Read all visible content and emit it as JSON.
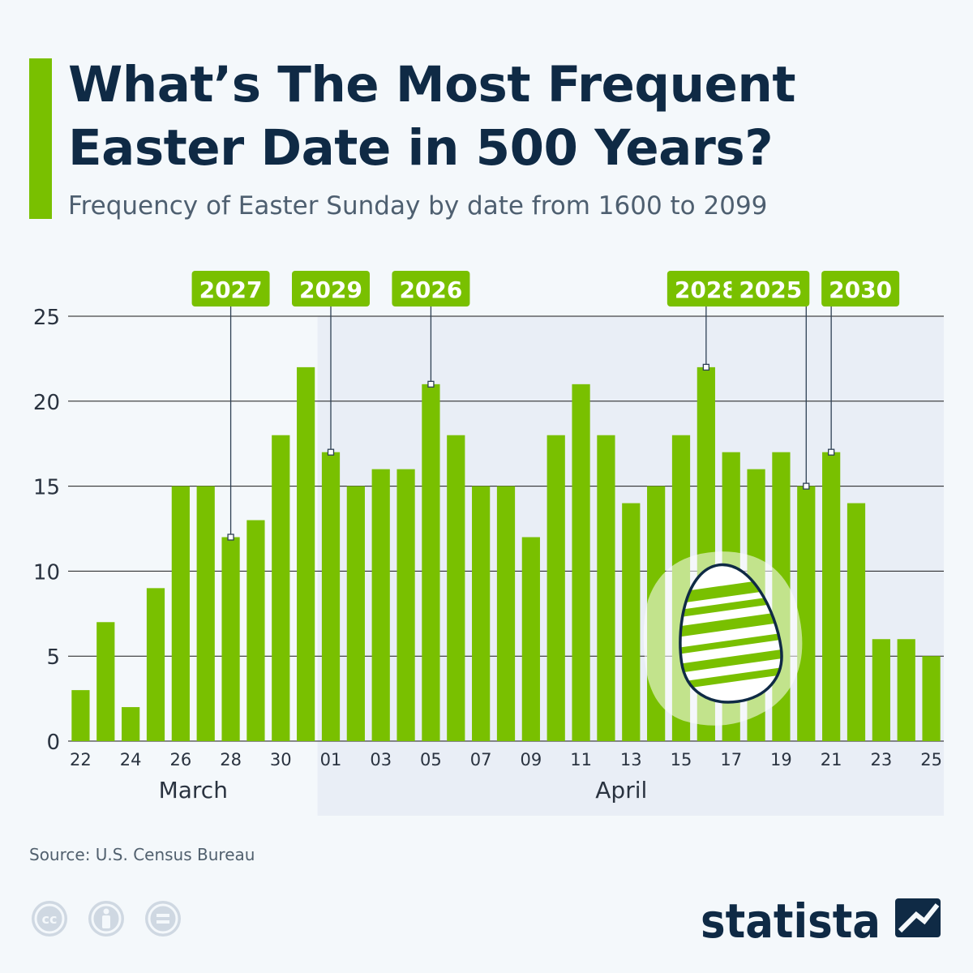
{
  "header": {
    "title_line1": "What’s The Most Frequent",
    "title_line2": "Easter Date in 500 Years?",
    "subtitle": "Frequency of Easter Sunday by date from 1600 to 2099"
  },
  "chart_data": {
    "type": "bar",
    "title": "What’s The Most Frequent Easter Date in 500 Years?",
    "subtitle": "Frequency of Easter Sunday by date from 1600 to 2099",
    "categories": [
      "22",
      "23",
      "24",
      "25",
      "26",
      "27",
      "28",
      "29",
      "30",
      "31",
      "01",
      "02",
      "03",
      "04",
      "05",
      "06",
      "07",
      "08",
      "09",
      "10",
      "11",
      "12",
      "13",
      "14",
      "15",
      "16",
      "17",
      "18",
      "19",
      "20",
      "21",
      "22",
      "23",
      "24",
      "25"
    ],
    "month_of_category": [
      "March",
      "March",
      "March",
      "March",
      "March",
      "March",
      "March",
      "March",
      "March",
      "March",
      "April",
      "April",
      "April",
      "April",
      "April",
      "April",
      "April",
      "April",
      "April",
      "April",
      "April",
      "April",
      "April",
      "April",
      "April",
      "April",
      "April",
      "April",
      "April",
      "April",
      "April",
      "April",
      "April",
      "April",
      "April"
    ],
    "values": [
      3,
      7,
      2,
      9,
      15,
      15,
      12,
      13,
      18,
      22,
      17,
      15,
      16,
      16,
      21,
      18,
      15,
      15,
      12,
      18,
      21,
      18,
      14,
      15,
      18,
      22,
      17,
      16,
      17,
      15,
      17,
      14,
      6,
      6,
      5
    ],
    "tick_labels": [
      {
        "index": 0,
        "label": "22"
      },
      {
        "index": 2,
        "label": "24"
      },
      {
        "index": 4,
        "label": "26"
      },
      {
        "index": 6,
        "label": "28"
      },
      {
        "index": 8,
        "label": "30"
      },
      {
        "index": 10,
        "label": "01"
      },
      {
        "index": 12,
        "label": "03"
      },
      {
        "index": 14,
        "label": "05"
      },
      {
        "index": 16,
        "label": "07"
      },
      {
        "index": 18,
        "label": "09"
      },
      {
        "index": 20,
        "label": "11"
      },
      {
        "index": 22,
        "label": "13"
      },
      {
        "index": 24,
        "label": "15"
      },
      {
        "index": 26,
        "label": "17"
      },
      {
        "index": 28,
        "label": "19"
      },
      {
        "index": 30,
        "label": "21"
      },
      {
        "index": 32,
        "label": "23"
      },
      {
        "index": 34,
        "label": "25"
      }
    ],
    "month_groups": [
      {
        "label": "March",
        "start": 0,
        "end": 9
      },
      {
        "label": "April",
        "start": 10,
        "end": 34
      }
    ],
    "yticks": [
      "0",
      "5",
      "10",
      "15",
      "20",
      "25"
    ],
    "ylim": [
      0,
      25
    ],
    "xlabel": "",
    "ylabel": "",
    "grid": true,
    "annotations": [
      {
        "label": "2027",
        "index": 6
      },
      {
        "label": "2029",
        "index": 10
      },
      {
        "label": "2026",
        "index": 14
      },
      {
        "label": "2028",
        "index": 25
      },
      {
        "label": "2025",
        "index": 29
      },
      {
        "label": "2030",
        "index": 30
      }
    ],
    "colors": {
      "bar": "#79c000",
      "april_band": "#e9eef6",
      "grid": "#1a1a1a",
      "axis_text": "#2a3340",
      "annotation_bg": "#79c000",
      "annotation_text": "#ffffff",
      "leader_line": "#2e4054"
    }
  },
  "footer": {
    "source": "Source: U.S. Census Bureau",
    "brand": "statista",
    "license_icons": [
      "cc-icon",
      "attribution-icon",
      "no-derivatives-icon"
    ]
  },
  "colors": {
    "title": "#0f2a45",
    "subtitle": "#4e5f70",
    "accent": "#79c000",
    "background": "#f4f8fb"
  }
}
